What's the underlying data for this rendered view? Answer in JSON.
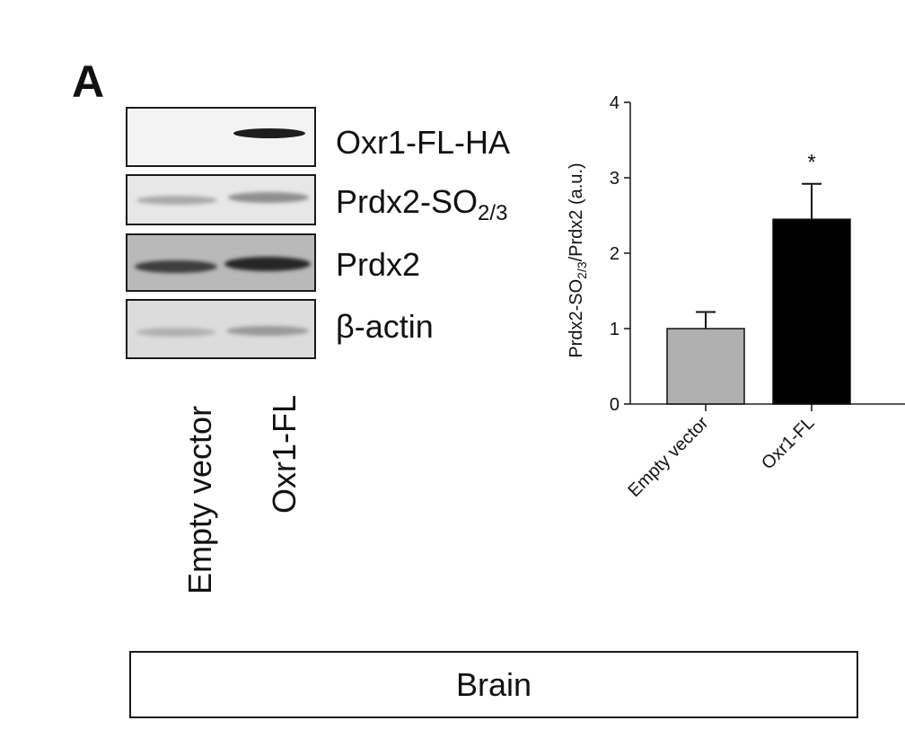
{
  "figure": {
    "panel_letter": "A",
    "tissue_label": "Brain"
  },
  "blot": {
    "rows": [
      {
        "label_main": "Oxr1-FL-HA",
        "label_sub": ""
      },
      {
        "label_main": "Prdx2-SO",
        "label_sub": "2/3"
      },
      {
        "label_main": "Prdx2",
        "label_sub": ""
      },
      {
        "label_main": "β-actin",
        "label_sub": ""
      }
    ],
    "lanes": [
      "Empty vector",
      "Oxr1-FL"
    ]
  },
  "chart_data": {
    "type": "bar",
    "categories": [
      "Empty vector",
      "Oxr1-FL"
    ],
    "values": [
      1.0,
      2.45
    ],
    "errors": [
      0.22,
      0.47
    ],
    "significance": [
      "",
      "*"
    ],
    "bar_colors": [
      "#b0b0b0",
      "#000000"
    ],
    "ylabel_main": "Prdx2-SO",
    "ylabel_sub": "2/3",
    "ylabel_tail": "/Prdx2 (a.u.)",
    "ylim": [
      0,
      4
    ],
    "yticks": [
      "0",
      "1",
      "2",
      "3",
      "4"
    ]
  }
}
